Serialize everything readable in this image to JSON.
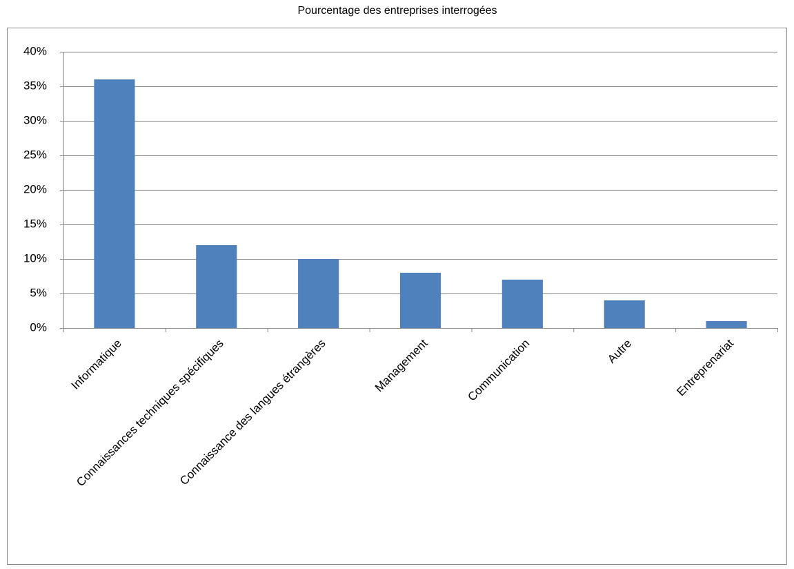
{
  "chart_data": {
    "type": "bar",
    "title": "Pourcentage des entreprises interrogées",
    "categories": [
      "Informatique",
      "Connaissances techniques spécifiques",
      "Connaissance des langues étrangères",
      "Management",
      "Communication",
      "Autre",
      "Entreprenariat"
    ],
    "values": [
      36,
      12,
      10,
      8,
      7,
      4,
      1
    ],
    "color": "#4f81bd",
    "ylim": [
      0,
      40
    ],
    "yticks": [
      {
        "value": 0,
        "label": "0%"
      },
      {
        "value": 5,
        "label": "5%"
      },
      {
        "value": 10,
        "label": "10%"
      },
      {
        "value": 15,
        "label": "15%"
      },
      {
        "value": 20,
        "label": "20%"
      },
      {
        "value": 25,
        "label": "25%"
      },
      {
        "value": 30,
        "label": "30%"
      },
      {
        "value": 35,
        "label": "35%"
      },
      {
        "value": 40,
        "label": "40%"
      }
    ],
    "grid": true
  }
}
